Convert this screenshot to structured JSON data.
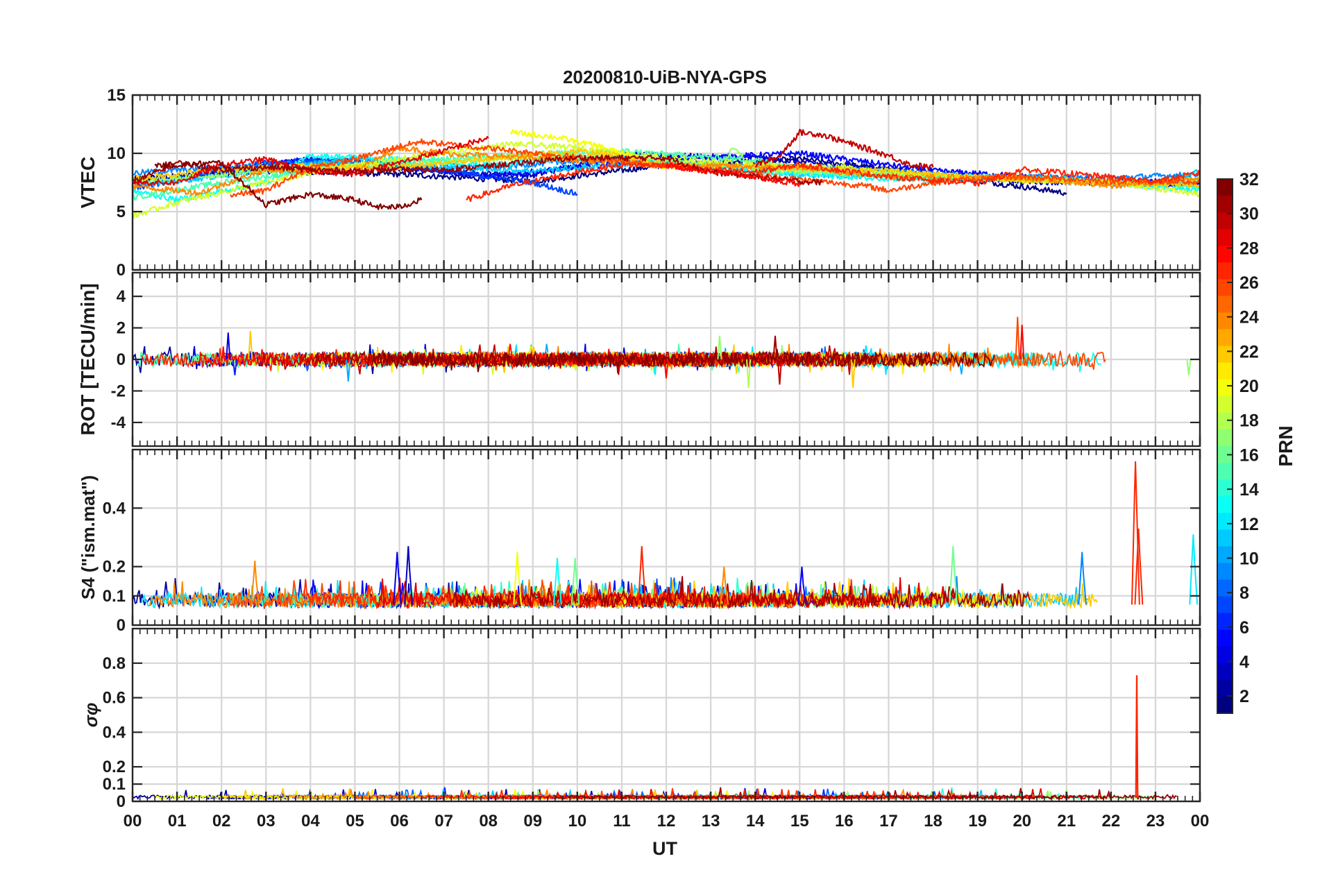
{
  "figure": {
    "title": "20200810-UiB-NYA-GPS",
    "xlabel": "UT",
    "x_ticks": [
      "00",
      "01",
      "02",
      "03",
      "04",
      "05",
      "06",
      "07",
      "08",
      "09",
      "10",
      "11",
      "12",
      "13",
      "14",
      "15",
      "16",
      "17",
      "18",
      "19",
      "20",
      "21",
      "22",
      "23",
      "00"
    ]
  },
  "colorbar": {
    "label": "PRN",
    "range": [
      1,
      32
    ],
    "ticks": [
      2,
      4,
      6,
      8,
      10,
      12,
      14,
      16,
      18,
      20,
      22,
      24,
      26,
      28,
      30,
      32
    ],
    "ticks_text": [
      "2",
      "4",
      "6",
      "8",
      "10",
      "12",
      "14",
      "16",
      "18",
      "20",
      "22",
      "24",
      "26",
      "28",
      "30",
      "32"
    ],
    "colormap": "jet"
  },
  "chart_data": [
    {
      "type": "line",
      "panel": "vtec",
      "ylabel": "VTEC",
      "xlim": [
        0,
        24
      ],
      "ylim": [
        0,
        15
      ],
      "y_ticks": [
        0,
        5,
        10,
        15
      ],
      "y_ticks_text": [
        "0",
        "5",
        "10",
        "15"
      ],
      "grid": true,
      "color_by": "PRN",
      "series": [
        {
          "prn": 1,
          "x": [
            0,
            3,
            6,
            9,
            12,
            15,
            18,
            21
          ],
          "y": [
            7.8,
            8.5,
            8.2,
            7.6,
            9.0,
            9.5,
            8.2,
            6.6
          ]
        },
        {
          "prn": 3,
          "x": [
            0,
            2,
            4,
            6,
            9,
            11,
            14,
            17,
            20,
            24
          ],
          "y": [
            7.5,
            8.5,
            9.5,
            8.6,
            8.1,
            9.9,
            9.6,
            8.6,
            7.6,
            7.3
          ]
        },
        {
          "prn": 5,
          "x": [
            2,
            4,
            6,
            8,
            10,
            12,
            15,
            18,
            21,
            24
          ],
          "y": [
            8.5,
            9.5,
            9.0,
            8.0,
            8.8,
            9.5,
            10.0,
            8.5,
            7.8,
            7.5
          ]
        },
        {
          "prn": 7,
          "x": [
            0,
            3,
            5,
            7,
            9,
            10
          ],
          "y": [
            7.0,
            9.2,
            9.5,
            8.5,
            7.5,
            6.5
          ]
        },
        {
          "prn": 9,
          "x": [
            0,
            2,
            4,
            6,
            8,
            11,
            13,
            15,
            17,
            19,
            22,
            24
          ],
          "y": [
            8.3,
            8.8,
            9.2,
            9.0,
            8.8,
            9.6,
            9.0,
            8.8,
            8.5,
            8.0,
            7.9,
            8.2
          ]
        },
        {
          "prn": 11,
          "x": [
            0,
            3,
            5,
            7,
            9,
            12,
            15,
            17,
            20,
            23,
            24
          ],
          "y": [
            7.2,
            8.5,
            9.6,
            8.8,
            8.5,
            9.3,
            8.2,
            8.0,
            7.8,
            7.3,
            8.5
          ]
        },
        {
          "prn": 13,
          "x": [
            0,
            1,
            3,
            4,
            6,
            8,
            10,
            12,
            14,
            16,
            18,
            20,
            22,
            24
          ],
          "y": [
            6.8,
            6.0,
            7.5,
            9.8,
            9.5,
            9.0,
            9.6,
            9.2,
            8.4,
            8.0,
            7.7,
            8.0,
            7.5,
            6.8
          ]
        },
        {
          "prn": 15,
          "x": [
            0,
            2,
            5,
            8,
            11,
            14,
            16,
            19,
            22,
            24
          ],
          "y": [
            6.2,
            7.5,
            9.0,
            9.8,
            10.2,
            9.4,
            8.2,
            8.0,
            7.5,
            7.2
          ]
        },
        {
          "prn": 17,
          "x": [
            0,
            3,
            6,
            8,
            10,
            12,
            13.3,
            13.5,
            14,
            17,
            20,
            23,
            24
          ],
          "y": [
            7.5,
            8.5,
            9.0,
            9.5,
            9.8,
            9.4,
            9.0,
            10.5,
            8.5,
            8.3,
            7.7,
            7.5,
            7.8
          ]
        },
        {
          "prn": 19,
          "x": [
            0,
            1,
            3,
            5,
            8.5,
            10,
            12,
            14,
            16,
            19,
            22,
            24
          ],
          "y": [
            4.6,
            5.8,
            7.5,
            9.0,
            10.8,
            10.5,
            9.6,
            9.0,
            8.8,
            7.8,
            7.5,
            6.5
          ]
        },
        {
          "prn": 20,
          "x": [
            8.5,
            9.5,
            10.5,
            11.5,
            12
          ],
          "y": [
            11.8,
            11.4,
            10.6,
            9.4,
            8.6
          ]
        },
        {
          "prn": 22,
          "x": [
            0,
            2,
            4,
            6,
            8,
            10,
            11,
            12,
            14,
            17,
            20,
            24
          ],
          "y": [
            7.8,
            8.6,
            9.0,
            8.8,
            9.5,
            10.2,
            9.8,
            9.0,
            8.8,
            8.5,
            7.7,
            7.3
          ]
        },
        {
          "prn": 24,
          "x": [
            0,
            1.5,
            3,
            5,
            6,
            7,
            9,
            12,
            15,
            17,
            20,
            22,
            24
          ],
          "y": [
            7.2,
            6.6,
            8.6,
            8.5,
            10.5,
            10.0,
            9.6,
            9.0,
            8.8,
            8.0,
            7.9,
            7.2,
            7.8
          ]
        },
        {
          "prn": 26,
          "x": [
            2.2,
            3,
            4,
            5,
            6,
            6.5,
            16.5,
            17,
            18,
            19,
            20,
            22,
            24
          ],
          "y": [
            6.4,
            6.8,
            8.8,
            9.5,
            10.6,
            11.0,
            7.2,
            6.8,
            7.5,
            7.8,
            8.0,
            7.6,
            7.5
          ]
        },
        {
          "prn": 27,
          "x": [
            7.5,
            8.5,
            10,
            11,
            12,
            13,
            14,
            15,
            17,
            19,
            20,
            21,
            23,
            24
          ],
          "y": [
            6.0,
            7.2,
            8.4,
            9.0,
            9.0,
            8.6,
            8.4,
            9.0,
            8.0,
            7.4,
            8.6,
            8.3,
            7.6,
            8.3
          ]
        },
        {
          "prn": 29,
          "x": [
            0,
            1,
            2,
            3,
            4,
            5,
            6,
            7,
            7.5,
            8
          ],
          "y": [
            7.5,
            7.5,
            9.0,
            9.5,
            8.5,
            8.2,
            9.2,
            10.2,
            10.8,
            11.3
          ]
        },
        {
          "prn": 31,
          "x": [
            0,
            1,
            2,
            3,
            4,
            5,
            6,
            7,
            8,
            9,
            10,
            12,
            13,
            14,
            15,
            15.5
          ],
          "y": [
            7.5,
            9.2,
            8.6,
            8.8,
            8.6,
            8.5,
            8.6,
            8.6,
            8.9,
            9.3,
            9.6,
            9.6,
            8.4,
            8.0,
            7.6,
            7.5
          ]
        },
        {
          "prn": 32,
          "x": [
            0.5,
            1,
            2,
            3,
            4,
            5,
            5.5,
            6,
            6.5
          ],
          "y": [
            9.0,
            9.0,
            9.2,
            5.6,
            6.5,
            6.0,
            5.4,
            5.4,
            6.0
          ]
        },
        {
          "prn": 30,
          "x": [
            14,
            14.5,
            15,
            15.5,
            16,
            16.5,
            17,
            17.5,
            18
          ],
          "y": [
            9.0,
            9.6,
            11.8,
            11.6,
            11.0,
            10.4,
            9.8,
            9.0,
            8.8
          ]
        },
        {
          "prn": 28,
          "x": [
            12,
            13,
            14,
            14.5,
            15
          ],
          "y": [
            9.0,
            8.4,
            8.0,
            7.6,
            7.4
          ]
        }
      ]
    },
    {
      "type": "line",
      "panel": "rot",
      "ylabel": "ROT [TECU/min]",
      "xlim": [
        0,
        24
      ],
      "ylim": [
        -5.5,
        5.5
      ],
      "y_ticks": [
        -4,
        -2,
        0,
        2,
        4
      ],
      "y_ticks_text": [
        "-4",
        "-2",
        "0",
        "2",
        "4"
      ],
      "grid": true,
      "color_by": "PRN",
      "note": "ROT fluctuates around 0 (mostly within about ±0.6); isolated spikes listed in spikes",
      "spikes": [
        {
          "prn": 4,
          "x": 2.15,
          "y": 1.7
        },
        {
          "prn": 22,
          "x": 2.65,
          "y": 1.8
        },
        {
          "prn": 6,
          "x": 2.3,
          "y": -1.0
        },
        {
          "prn": 10,
          "x": 4.85,
          "y": -1.4
        },
        {
          "prn": 28,
          "x": 12.0,
          "y": -1.2
        },
        {
          "prn": 17,
          "x": 13.2,
          "y": 1.5
        },
        {
          "prn": 18,
          "x": 13.85,
          "y": -1.8
        },
        {
          "prn": 31,
          "x": 14.45,
          "y": 1.5
        },
        {
          "prn": 30,
          "x": 14.55,
          "y": -1.6
        },
        {
          "prn": 22,
          "x": 16.2,
          "y": -1.8
        },
        {
          "prn": 26,
          "x": 19.9,
          "y": 2.7
        },
        {
          "prn": 28,
          "x": 20.0,
          "y": 2.2
        },
        {
          "prn": 17,
          "x": 23.75,
          "y": -1.0
        }
      ]
    },
    {
      "type": "line",
      "panel": "s4",
      "ylabel": "S4 (\"ism.mat\")",
      "xlim": [
        0,
        24
      ],
      "ylim": [
        0,
        0.6
      ],
      "y_ticks": [
        0,
        0.1,
        0.2,
        0.4
      ],
      "y_ticks_text": [
        "0",
        "0.1",
        "0.2",
        "0.4"
      ],
      "grid": true,
      "color_by": "PRN",
      "note": "Background S4 about 0.04–0.15; peaks listed in peaks",
      "peaks": [
        {
          "prn": 24,
          "x": 2.75,
          "y": 0.22
        },
        {
          "prn": 4,
          "x": 5.95,
          "y": 0.25
        },
        {
          "prn": 3,
          "x": 6.2,
          "y": 0.27
        },
        {
          "prn": 20,
          "x": 8.65,
          "y": 0.25
        },
        {
          "prn": 13,
          "x": 9.55,
          "y": 0.23
        },
        {
          "prn": 16,
          "x": 9.95,
          "y": 0.23
        },
        {
          "prn": 27,
          "x": 11.45,
          "y": 0.27
        },
        {
          "prn": 24,
          "x": 13.3,
          "y": 0.2
        },
        {
          "prn": 5,
          "x": 15.05,
          "y": 0.2
        },
        {
          "prn": 16,
          "x": 18.45,
          "y": 0.27
        },
        {
          "prn": 9,
          "x": 21.35,
          "y": 0.25
        },
        {
          "prn": 27,
          "x": 22.55,
          "y": 0.56
        },
        {
          "prn": 27,
          "x": 22.62,
          "y": 0.33
        },
        {
          "prn": 12,
          "x": 23.85,
          "y": 0.31
        }
      ]
    },
    {
      "type": "line",
      "panel": "sigma_phi",
      "ylabel": "σφ",
      "xlim": [
        0,
        24
      ],
      "ylim": [
        0,
        1.0
      ],
      "y_ticks": [
        0,
        0.1,
        0.2,
        0.4,
        0.6,
        0.8
      ],
      "y_ticks_text": [
        "0",
        "0.1",
        "0.2",
        "0.4",
        "0.6",
        "0.8"
      ],
      "grid": true,
      "color_by": "PRN",
      "note": "Sigma-phi mostly below 0.06; one spike listed in spikes",
      "spikes": [
        {
          "prn": 27,
          "x": 22.58,
          "y": 0.73
        }
      ]
    }
  ]
}
